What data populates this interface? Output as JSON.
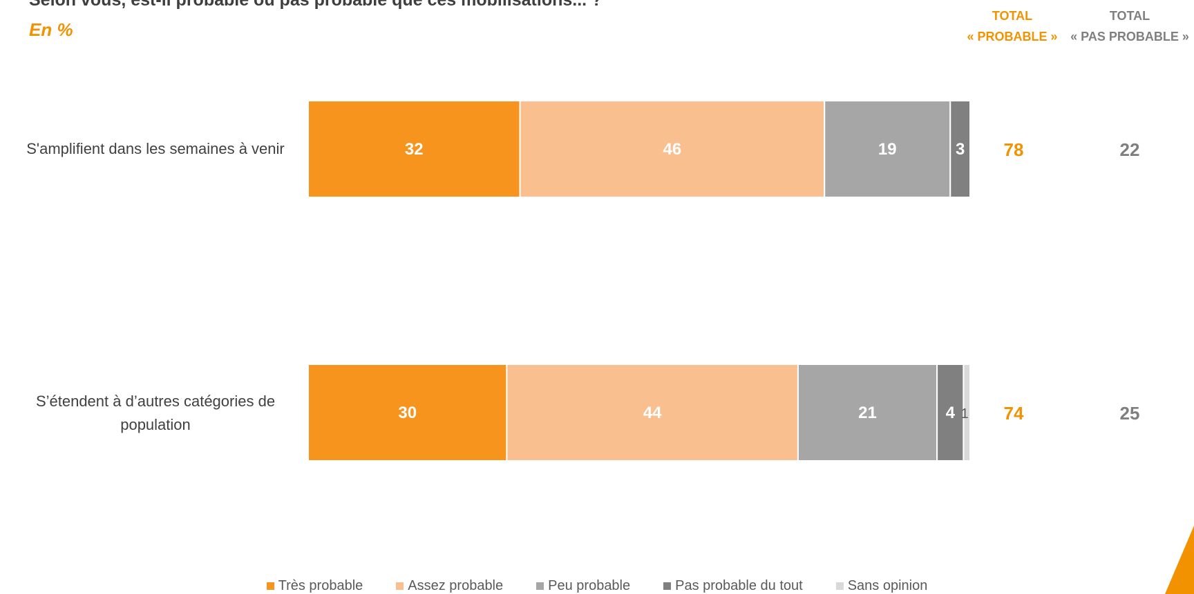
{
  "header": {
    "question": "Selon vous, est-il probable ou pas probable que ces mobilisations... ?",
    "unit": "En  %",
    "total_probable_line1": "TOTAL",
    "total_probable_line2": "« PROBABLE »",
    "total_pas_line1": "TOTAL",
    "total_pas_line2": "« PAS PROBABLE »"
  },
  "rows": [
    {
      "label": "S'amplifient dans les semaines à venir",
      "total_probable": "78",
      "total_pas_probable": "22"
    },
    {
      "label": "S’étendent à d’autres catégories de population",
      "total_probable": "74",
      "total_pas_probable": "25"
    }
  ],
  "colors": {
    "tres": "#f7941d",
    "assez": "#f9bf8f",
    "peu": "#a6a6a6",
    "pas": "#808080",
    "sans": "#d9d9d9",
    "accent": "#f39200",
    "grey_text": "#7f7f7f"
  },
  "chart_data": {
    "type": "bar",
    "orientation": "horizontal",
    "stacked": true,
    "categories": [
      "S'amplifient dans les semaines à venir",
      "S’étendent à d’autres catégories de population"
    ],
    "series": [
      {
        "name": "Très probable",
        "values": [
          32,
          30
        ],
        "labels": [
          "32",
          "30"
        ]
      },
      {
        "name": "Assez probable",
        "values": [
          46,
          44
        ],
        "labels": [
          "46",
          "44"
        ]
      },
      {
        "name": "Peu probable",
        "values": [
          19,
          21
        ],
        "labels": [
          "19",
          "21"
        ]
      },
      {
        "name": "Pas probable du tout",
        "values": [
          3,
          4
        ],
        "labels": [
          "3",
          "4"
        ]
      },
      {
        "name": "Sans opinion",
        "values": [
          0,
          1
        ],
        "labels": [
          "",
          "1"
        ]
      }
    ],
    "xlim": [
      0,
      100
    ],
    "legend": "bottom"
  }
}
